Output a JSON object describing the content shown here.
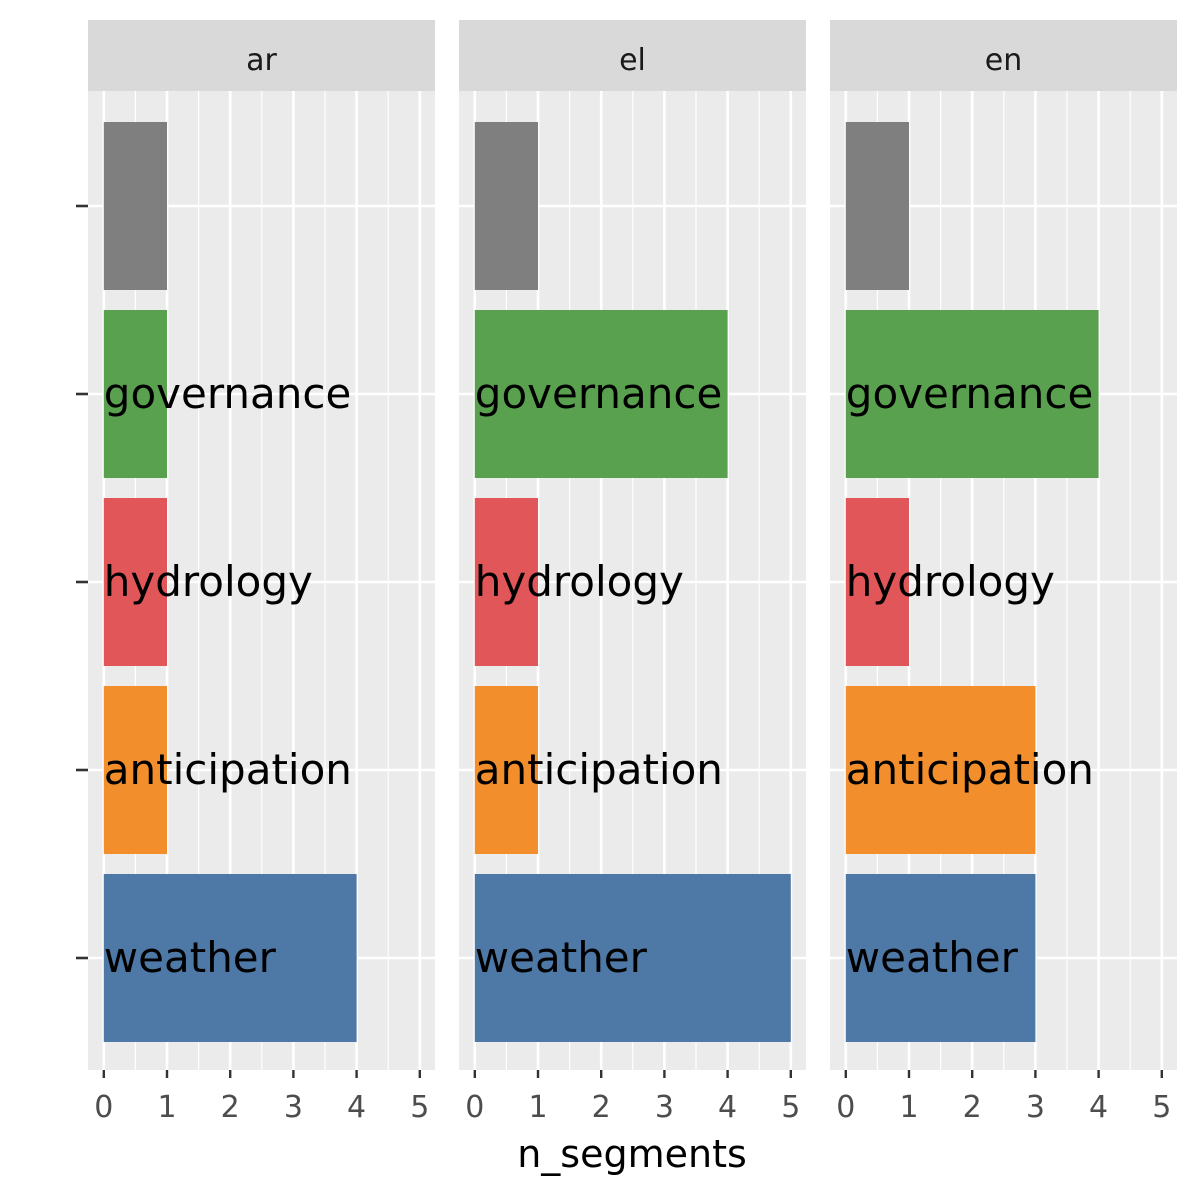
{
  "chart_data": {
    "type": "bar",
    "orientation": "horizontal",
    "facet_by": "language",
    "xlabel": "n_segments",
    "ylabel": "",
    "xlim": [
      0,
      5
    ],
    "x_ticks": [
      "0",
      "1",
      "2",
      "3",
      "4",
      "5"
    ],
    "grid": true,
    "legend": "none",
    "categories": [
      "weather",
      "anticipation",
      "hydrology",
      "governance",
      ""
    ],
    "colors": {
      "weather": "#4e79a7",
      "anticipation": "#f28e2b",
      "hydrology": "#e15759",
      "governance": "#59a14f",
      "": "#7f7f7f"
    },
    "panels": [
      {
        "name": "ar",
        "values": [
          4,
          1,
          1,
          1,
          1
        ]
      },
      {
        "name": "el",
        "values": [
          5,
          1,
          1,
          4,
          1
        ]
      },
      {
        "name": "en",
        "values": [
          3,
          3,
          1,
          4,
          1
        ]
      }
    ]
  }
}
